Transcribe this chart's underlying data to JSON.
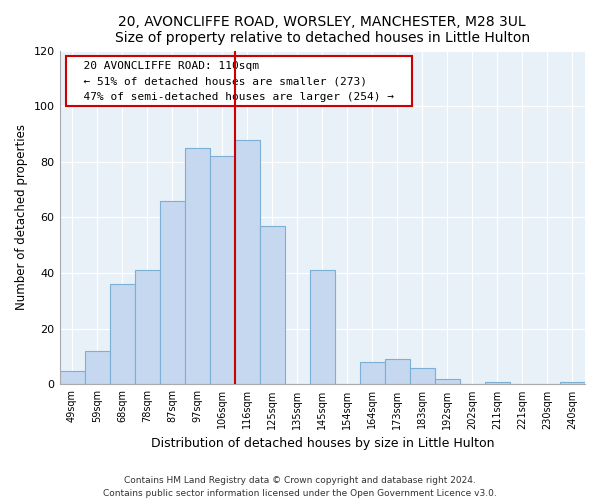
{
  "title1": "20, AVONCLIFFE ROAD, WORSLEY, MANCHESTER, M28 3UL",
  "title2": "Size of property relative to detached houses in Little Hulton",
  "xlabel": "Distribution of detached houses by size in Little Hulton",
  "ylabel": "Number of detached properties",
  "footer1": "Contains HM Land Registry data © Crown copyright and database right 2024.",
  "footer2": "Contains public sector information licensed under the Open Government Licence v3.0.",
  "bar_labels": [
    "49sqm",
    "59sqm",
    "68sqm",
    "78sqm",
    "87sqm",
    "97sqm",
    "106sqm",
    "116sqm",
    "125sqm",
    "135sqm",
    "145sqm",
    "154sqm",
    "164sqm",
    "173sqm",
    "183sqm",
    "192sqm",
    "202sqm",
    "211sqm",
    "221sqm",
    "230sqm",
    "240sqm"
  ],
  "bar_values": [
    5,
    12,
    36,
    41,
    66,
    85,
    82,
    88,
    57,
    0,
    41,
    0,
    8,
    9,
    6,
    2,
    0,
    1,
    0,
    0,
    1
  ],
  "bar_color": "#c5d8f0",
  "bar_edge_color": "#7bafd4",
  "axes_bg_color": "#e8f0f8",
  "grid_color": "#ffffff",
  "vline_x": 6.5,
  "vline_color": "#cc0000",
  "annotation_title": "20 AVONCLIFFE ROAD: 110sqm",
  "annotation_line1": "← 51% of detached houses are smaller (273)",
  "annotation_line2": "47% of semi-detached houses are larger (254) →",
  "annotation_box_color": "#ffffff",
  "annotation_box_edge": "#cc0000",
  "ylim": [
    0,
    120
  ],
  "yticks": [
    0,
    20,
    40,
    60,
    80,
    100,
    120
  ]
}
